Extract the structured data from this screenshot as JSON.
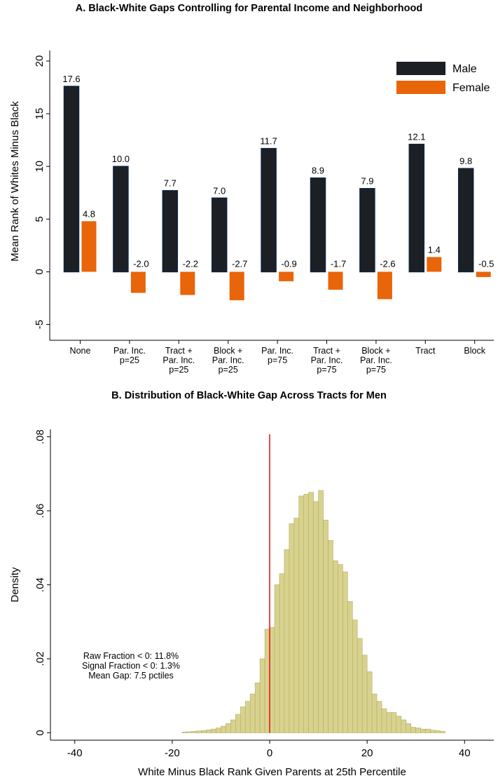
{
  "chart_data": [
    {
      "type": "bar",
      "title": "A. Black-White Gaps Controlling for Parental Income and Neighborhood",
      "xlabel": "",
      "ylabel": "Mean Rank of Whites Minus Black",
      "ylim": [
        -6.5,
        21
      ],
      "yticks": [
        -5,
        0,
        5,
        10,
        15,
        20
      ],
      "ytick_labels": [
        "-5",
        "0",
        "5",
        "10",
        "15",
        "20"
      ],
      "categories": [
        [
          "None"
        ],
        [
          "Par. Inc.",
          "p=25"
        ],
        [
          "Tract +",
          "Par. Inc.",
          "p=25"
        ],
        [
          "Block +",
          "Par. Inc.",
          "p=25"
        ],
        [
          "Par. Inc.",
          "p=75"
        ],
        [
          "Tract +",
          "Par. Inc.",
          "p=75"
        ],
        [
          "Block +",
          "Par. Inc.",
          "p=75"
        ],
        [
          "Tract"
        ],
        [
          "Block"
        ]
      ],
      "series": [
        {
          "name": "Male",
          "color": "#1c1f24",
          "values": [
            17.6,
            10.0,
            7.7,
            7.0,
            11.7,
            8.9,
            7.9,
            12.1,
            9.8
          ],
          "labels": [
            "17.6",
            "10.0",
            "7.7",
            "7.0",
            "11.7",
            "8.9",
            "7.9",
            "12.1",
            "9.8"
          ]
        },
        {
          "name": "Female",
          "color": "#e8650a",
          "values": [
            4.8,
            -2.0,
            -2.2,
            -2.7,
            -0.9,
            -1.7,
            -2.6,
            1.4,
            -0.5
          ],
          "labels": [
            "4.8",
            "-2.0",
            "-2.2",
            "-2.7",
            "-0.9",
            "-1.7",
            "-2.6",
            "1.4",
            "-0.5"
          ]
        }
      ],
      "legend_position": "top-right",
      "grid": false
    },
    {
      "type": "histogram",
      "title": "B. Distribution of Black-White Gap Across Tracts for Men",
      "xlabel": "White Minus Black Rank Given Parents at 25th Percentile",
      "ylabel": "Density",
      "xlim": [
        -45,
        46
      ],
      "ylim": [
        -0.002,
        0.082
      ],
      "xticks": [
        -40,
        -20,
        0,
        20,
        40
      ],
      "xtick_labels": [
        "-40",
        "-20",
        "0",
        "20",
        "40"
      ],
      "yticks": [
        0,
        0.02,
        0.04,
        0.06,
        0.08
      ],
      "ytick_labels": [
        "0",
        ".02",
        ".04",
        ".06",
        ".08"
      ],
      "bin_start": -18,
      "bin_width": 1,
      "densities": [
        0.0002,
        0.0003,
        0.0004,
        0.0005,
        0.0006,
        0.0008,
        0.001,
        0.0013,
        0.0018,
        0.0025,
        0.0035,
        0.005,
        0.007,
        0.0085,
        0.0105,
        0.0135,
        0.02,
        0.028,
        0.0285,
        0.04,
        0.043,
        0.0495,
        0.0565,
        0.058,
        0.064,
        0.0645,
        0.065,
        0.0625,
        0.0655,
        0.0575,
        0.052,
        0.0465,
        0.0455,
        0.0435,
        0.0355,
        0.0305,
        0.0255,
        0.021,
        0.0165,
        0.0105,
        0.0085,
        0.0065,
        0.0055,
        0.0055,
        0.0045,
        0.0035,
        0.0025,
        0.0015,
        0.0013,
        0.001,
        0.001,
        0.0007,
        0.0006,
        0.0004
      ],
      "bar_color": "#d8d28f",
      "bar_edge": "#b5ad62",
      "reference_line": {
        "x": 0,
        "color": "#e01010"
      },
      "annotations": [
        "Raw Fraction < 0: 11.8%",
        "Signal Fraction < 0: 1.3%",
        "Mean Gap:  7.5 pctiles"
      ],
      "grid": false
    }
  ]
}
